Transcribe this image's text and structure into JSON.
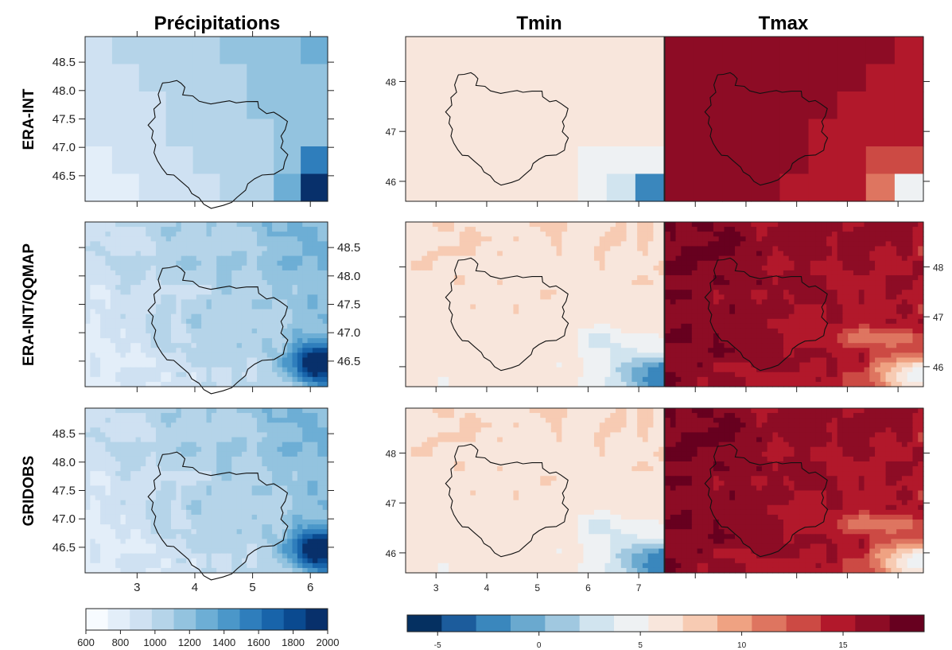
{
  "chart_data": {
    "type": "heatmap",
    "column_titles": [
      "Précipitations",
      "Tmin",
      "Tmax"
    ],
    "row_titles": [
      "ERA-INT",
      "ERA-INT/QQMAP",
      "GRIDOBS"
    ],
    "precip_axes": {
      "xlim": [
        2.1,
        6.3
      ],
      "ylim": [
        46.05,
        48.95
      ],
      "x_ticks": [
        "3",
        "4",
        "5",
        "6"
      ],
      "y_ticks": [
        "46.5",
        "47.0",
        "47.5",
        "48.0",
        "48.5"
      ]
    },
    "temp_axes": {
      "xlim": [
        2.4,
        7.5
      ],
      "ylim": [
        45.6,
        48.9
      ],
      "x_ticks": [
        "3",
        "4",
        "5",
        "6",
        "7"
      ],
      "y_ticks": [
        "46",
        "47",
        "48"
      ]
    },
    "precip_colorbar": {
      "range": [
        600,
        2000
      ],
      "ticks": [
        "600",
        "800",
        "1000",
        "1200",
        "1400",
        "1600",
        "1800",
        "2000"
      ],
      "colors": [
        "#f7fbff",
        "#e3eef9",
        "#cfe1f2",
        "#b5d4e9",
        "#93c3df",
        "#6daed5",
        "#4b97c9",
        "#2f7ebc",
        "#1864aa",
        "#0a4a90",
        "#08306b"
      ]
    },
    "temp_colorbar": {
      "range": [
        -6.5,
        19
      ],
      "ticks": [
        "-5",
        "0",
        "5",
        "10",
        "15"
      ],
      "colors": [
        "#053061",
        "#1c5c9c",
        "#3a87bd",
        "#6aa9cf",
        "#a0c8e0",
        "#d1e4ef",
        "#eef1f3",
        "#f8e6dc",
        "#f7cbb3",
        "#efa282",
        "#de7560",
        "#cc4a44",
        "#b2182b",
        "#8d0c25",
        "#67001f"
      ]
    },
    "maps": [
      {
        "row": "ERA-INT",
        "precipitation": "coarse grid, mostly 800–1000, up to ~1200 in the east",
        "tmin": "coarse grid, ~6–9, cooler ~3–5 in the south-east",
        "tmax": "coarse grid, ~13–16, cooler ~9–12 in the south-east"
      },
      {
        "row": "ERA-INT/QQMAP",
        "precipitation": "fine grid, ~800–1100, maximum ~2000 in the south-east",
        "tmin": "fine grid, ~6–7, minimum ~-3 in the south-east",
        "tmax": "fine grid, ~15–17, minimum ~3 in the south-east"
      },
      {
        "row": "GRIDOBS",
        "precipitation": "fine grid, ~800–1100, maximum ~2000 in the south-east",
        "tmin": "fine grid, ~6–7, minimum ~-3 in the south-east",
        "tmax": "fine grid, ~15–17, minimum ~3 in the south-east"
      }
    ]
  }
}
